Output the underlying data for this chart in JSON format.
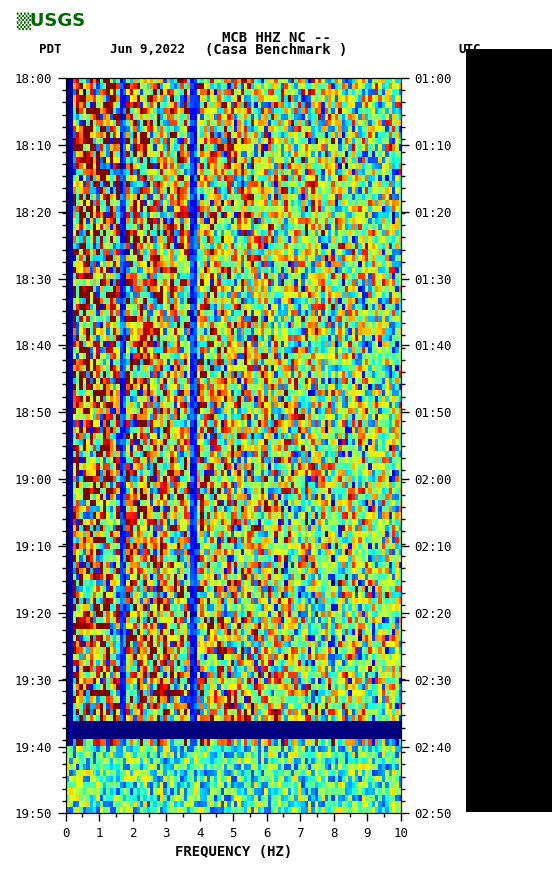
{
  "title_line1": "MCB HHZ NC --",
  "title_line2": "(Casa Benchmark )",
  "date_label": "Jun 9,2022",
  "pdt_label": "PDT",
  "utc_label": "UTC",
  "freq_label": "FREQUENCY (HZ)",
  "freq_min": 0,
  "freq_max": 10,
  "ytick_pdt": [
    "18:00",
    "18:10",
    "18:20",
    "18:30",
    "18:40",
    "18:50",
    "19:00",
    "19:10",
    "19:20",
    "19:30",
    "19:40",
    "19:50"
  ],
  "ytick_utc": [
    "01:00",
    "01:10",
    "01:20",
    "01:30",
    "01:40",
    "01:50",
    "02:00",
    "02:10",
    "02:20",
    "02:30",
    "02:40",
    "02:50"
  ],
  "xticks": [
    0,
    1,
    2,
    3,
    4,
    5,
    6,
    7,
    8,
    9,
    10
  ],
  "colormap": "jet",
  "bg_color": "#ffffff",
  "spectrogram_seed": 42,
  "n_freq_bins": 100,
  "n_time_bins": 120,
  "figure_width": 5.52,
  "figure_height": 8.92,
  "dpi": 100
}
